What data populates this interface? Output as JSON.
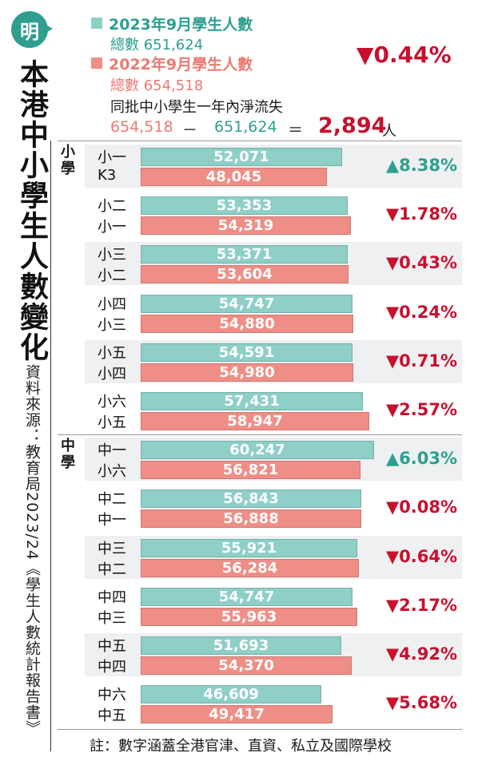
{
  "logo": {
    "char": "明"
  },
  "title": "本港中小學生人數變化",
  "source": "資料來源：教育局2023/24《學生人數統計報告書》",
  "legend": {
    "y2023": {
      "label": "2023年9月學生人數",
      "total": "總數 651,624",
      "color": "#8ecfc8"
    },
    "y2022": {
      "label": "2022年9月學生人數",
      "total": "總數 654,518",
      "color": "#ef8e86"
    }
  },
  "overall_change": "▼0.44%",
  "net_loss": {
    "caption": "同批中小學生一年內淨流失",
    "a": "654,518",
    "minus": "－",
    "b": "651,624",
    "equals": "＝",
    "result": "2,894",
    "unit": "人"
  },
  "sections": {
    "primary": "小學",
    "secondary": "中學"
  },
  "note": "註：數字涵蓋全港官津、直資、私立及國際學校",
  "chart_data": {
    "type": "bar",
    "series": [
      {
        "name": "2023年9月學生人數",
        "color": "#8ecfc8"
      },
      {
        "name": "2022年9月學生人數",
        "color": "#ef8e86"
      }
    ],
    "rows": [
      {
        "grade2023": "小一",
        "grade2022": "K3",
        "v2023": 52071,
        "v2022": 48045,
        "label2023": "52,071",
        "label2022": "48,045",
        "change": "▲8.38%",
        "dir": "up"
      },
      {
        "grade2023": "小二",
        "grade2022": "小一",
        "v2023": 53353,
        "v2022": 54319,
        "label2023": "53,353",
        "label2022": "54,319",
        "change": "▼1.78%",
        "dir": "down"
      },
      {
        "grade2023": "小三",
        "grade2022": "小二",
        "v2023": 53371,
        "v2022": 53604,
        "label2023": "53,371",
        "label2022": "53,604",
        "change": "▼0.43%",
        "dir": "down"
      },
      {
        "grade2023": "小四",
        "grade2022": "小三",
        "v2023": 54747,
        "v2022": 54880,
        "label2023": "54,747",
        "label2022": "54,880",
        "change": "▼0.24%",
        "dir": "down"
      },
      {
        "grade2023": "小五",
        "grade2022": "小四",
        "v2023": 54591,
        "v2022": 54980,
        "label2023": "54,591",
        "label2022": "54,980",
        "change": "▼0.71%",
        "dir": "down"
      },
      {
        "grade2023": "小六",
        "grade2022": "小五",
        "v2023": 57431,
        "v2022": 58947,
        "label2023": "57,431",
        "label2022": "58,947",
        "change": "▼2.57%",
        "dir": "down"
      },
      {
        "grade2023": "中一",
        "grade2022": "小六",
        "v2023": 60247,
        "v2022": 56821,
        "label2023": "60,247",
        "label2022": "56,821",
        "change": "▲6.03%",
        "dir": "up"
      },
      {
        "grade2023": "中二",
        "grade2022": "中一",
        "v2023": 56843,
        "v2022": 56888,
        "label2023": "56,843",
        "label2022": "56,888",
        "change": "▼0.08%",
        "dir": "down"
      },
      {
        "grade2023": "中三",
        "grade2022": "中二",
        "v2023": 55921,
        "v2022": 56284,
        "label2023": "55,921",
        "label2022": "56,284",
        "change": "▼0.64%",
        "dir": "down"
      },
      {
        "grade2023": "中四",
        "grade2022": "中三",
        "v2023": 54747,
        "v2022": 55963,
        "label2023": "54,747",
        "label2022": "55,963",
        "change": "▼2.17%",
        "dir": "down"
      },
      {
        "grade2023": "中五",
        "grade2022": "中四",
        "v2023": 51693,
        "v2022": 54370,
        "label2023": "51,693",
        "label2022": "54,370",
        "change": "▼4.92%",
        "dir": "down"
      },
      {
        "grade2023": "中六",
        "grade2022": "中五",
        "v2023": 46609,
        "v2022": 49417,
        "label2023": "46,609",
        "label2022": "49,417",
        "change": "▼5.68%",
        "dir": "down"
      }
    ]
  }
}
